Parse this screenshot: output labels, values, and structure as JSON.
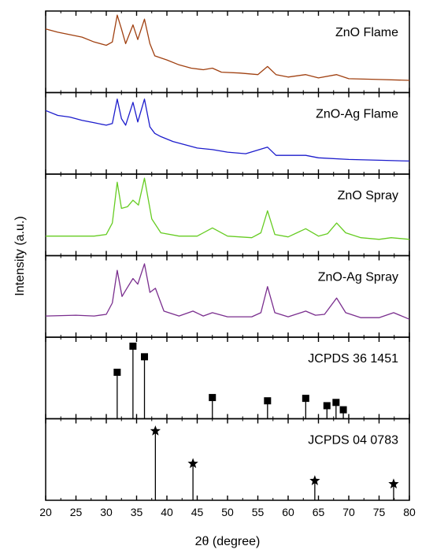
{
  "chart_data": {
    "type": "line",
    "xlabel": "2θ (degree)",
    "ylabel": "Intensity (a.u.)",
    "xlim": [
      20,
      80
    ],
    "x_ticks": [
      20,
      25,
      30,
      35,
      40,
      45,
      50,
      55,
      60,
      65,
      70,
      75,
      80
    ],
    "series": [
      {
        "name": "ZnO Flame",
        "color": "#a04010",
        "x": [
          20,
          22,
          24,
          26,
          28,
          30,
          31,
          31.8,
          32.5,
          33.2,
          34.4,
          35.2,
          36.3,
          37.2,
          38,
          40,
          42,
          44,
          46,
          47.5,
          49,
          52,
          55,
          56.6,
          58,
          60,
          62.9,
          65,
          68,
          70,
          75,
          80
        ],
        "y": [
          0.78,
          0.74,
          0.71,
          0.68,
          0.62,
          0.58,
          0.62,
          0.95,
          0.78,
          0.6,
          0.83,
          0.65,
          0.9,
          0.6,
          0.45,
          0.4,
          0.34,
          0.3,
          0.28,
          0.3,
          0.25,
          0.24,
          0.22,
          0.32,
          0.22,
          0.19,
          0.22,
          0.18,
          0.22,
          0.17,
          0.16,
          0.15
        ]
      },
      {
        "name": "ZnO-Ag Flame",
        "color": "#1c1ccc",
        "x": [
          20,
          22,
          24,
          26,
          28,
          30,
          31,
          31.8,
          32.5,
          33.2,
          34.4,
          35.2,
          36.3,
          37.2,
          38,
          39,
          41,
          43,
          45,
          47.5,
          50,
          53,
          56.6,
          58,
          62.9,
          65,
          70,
          75,
          80
        ],
        "y": [
          0.78,
          0.72,
          0.7,
          0.66,
          0.63,
          0.6,
          0.62,
          0.92,
          0.68,
          0.6,
          0.88,
          0.64,
          0.92,
          0.58,
          0.5,
          0.46,
          0.4,
          0.36,
          0.32,
          0.3,
          0.27,
          0.25,
          0.33,
          0.23,
          0.23,
          0.2,
          0.18,
          0.17,
          0.16
        ]
      },
      {
        "name": "ZnO Spray",
        "color": "#66cc22",
        "x": [
          20,
          25,
          28,
          30,
          31,
          31.8,
          32.5,
          33.5,
          34.4,
          35.3,
          36.3,
          37.5,
          39,
          42,
          45,
          47.5,
          50,
          54,
          55.5,
          56.6,
          57.8,
          60,
          62.9,
          65,
          66.5,
          68,
          69.5,
          72,
          75,
          77,
          80
        ],
        "y": [
          0.24,
          0.24,
          0.24,
          0.26,
          0.4,
          0.9,
          0.58,
          0.6,
          0.68,
          0.62,
          0.95,
          0.45,
          0.28,
          0.24,
          0.24,
          0.34,
          0.24,
          0.22,
          0.28,
          0.55,
          0.26,
          0.23,
          0.33,
          0.24,
          0.27,
          0.4,
          0.28,
          0.22,
          0.2,
          0.22,
          0.2
        ]
      },
      {
        "name": "ZnO-Ag Spray",
        "color": "#7a2e8e",
        "x": [
          20,
          25,
          28,
          30,
          31,
          31.8,
          32.6,
          33.4,
          34.4,
          35.2,
          36.3,
          37.2,
          38.1,
          39.5,
          42,
          44.3,
          46,
          47.5,
          50,
          54,
          55.5,
          56.6,
          57.8,
          60,
          62.9,
          64.5,
          66,
          68,
          69.5,
          72,
          75,
          77.4,
          80
        ],
        "y": [
          0.26,
          0.27,
          0.26,
          0.28,
          0.42,
          0.82,
          0.5,
          0.6,
          0.72,
          0.65,
          0.9,
          0.55,
          0.6,
          0.32,
          0.26,
          0.32,
          0.26,
          0.3,
          0.25,
          0.25,
          0.3,
          0.62,
          0.3,
          0.25,
          0.32,
          0.27,
          0.28,
          0.48,
          0.3,
          0.24,
          0.24,
          0.3,
          0.22
        ]
      }
    ],
    "reference_panels": [
      {
        "name": "JCPDS 36 1451",
        "marker": "square",
        "peaks": [
          {
            "x": 31.8,
            "y": 0.57
          },
          {
            "x": 34.4,
            "y": 0.89
          },
          {
            "x": 36.3,
            "y": 0.76
          },
          {
            "x": 47.5,
            "y": 0.26
          },
          {
            "x": 56.6,
            "y": 0.22
          },
          {
            "x": 62.9,
            "y": 0.25
          },
          {
            "x": 66.4,
            "y": 0.16
          },
          {
            "x": 67.9,
            "y": 0.2
          },
          {
            "x": 69.1,
            "y": 0.11
          }
        ]
      },
      {
        "name": "JCPDS 04 0783",
        "marker": "star",
        "peaks": [
          {
            "x": 38.1,
            "y": 0.85
          },
          {
            "x": 44.3,
            "y": 0.45
          },
          {
            "x": 64.4,
            "y": 0.24
          },
          {
            "x": 77.4,
            "y": 0.2
          }
        ]
      }
    ]
  }
}
